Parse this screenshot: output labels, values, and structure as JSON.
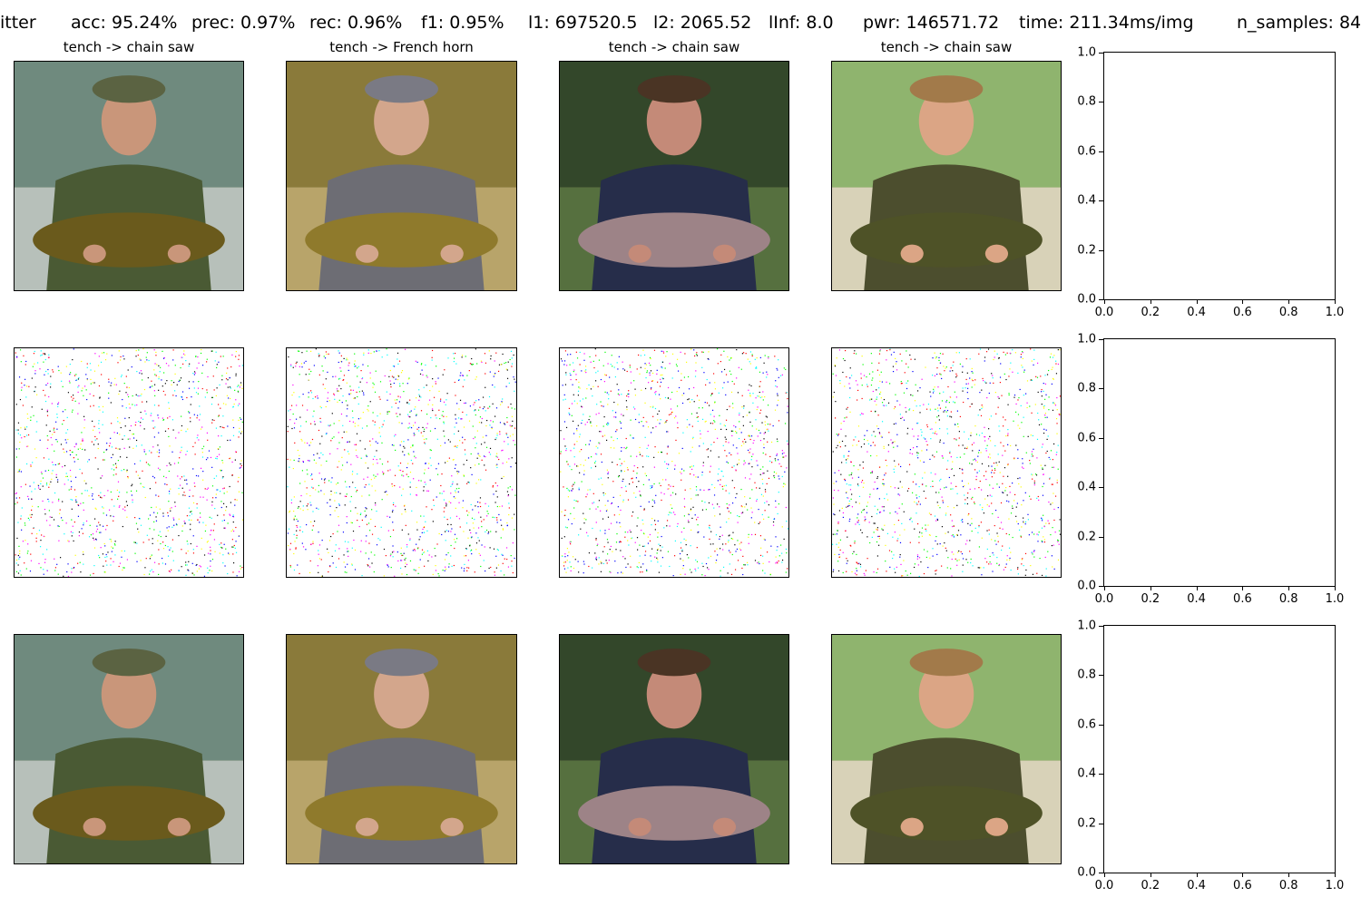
{
  "header": {
    "stats": [
      {
        "key": "method",
        "text": "itter"
      },
      {
        "key": "acc",
        "text": "acc: 95.24%"
      },
      {
        "key": "prec",
        "text": "prec: 0.97%"
      },
      {
        "key": "rec",
        "text": "rec: 0.96%"
      },
      {
        "key": "f1",
        "text": "f1: 0.95%"
      },
      {
        "key": "l1",
        "text": "l1: 697520.5"
      },
      {
        "key": "l2",
        "text": "l2: 2065.52"
      },
      {
        "key": "linf",
        "text": "lInf: 8.0"
      },
      {
        "key": "pwr",
        "text": "pwr: 146571.72"
      },
      {
        "key": "time",
        "text": "time: 211.34ms/img"
      },
      {
        "key": "n_samples",
        "text": "n_samples: 84"
      }
    ]
  },
  "columns": [
    {
      "caption": "tench -> chain saw",
      "image": "man-with-hat-holding-tench",
      "accent": "#4f5a33"
    },
    {
      "caption": "tench -> French horn",
      "image": "boy-in-hood-holding-tench",
      "accent": "#8f7a2c"
    },
    {
      "caption": "tench -> chain saw",
      "image": "man-in-navy-hoodie-holding-bream",
      "accent": "#2c3a22"
    },
    {
      "caption": "tench -> chain saw",
      "image": "smiling-man-holding-tench",
      "accent": "#7aa458"
    }
  ],
  "rows": [
    {
      "kind": "original"
    },
    {
      "kind": "perturbation"
    },
    {
      "kind": "adversarial"
    }
  ],
  "empty_axes": {
    "ticks": [
      "0.0",
      "0.2",
      "0.4",
      "0.6",
      "0.8",
      "1.0"
    ]
  },
  "noise_colors": [
    "#ff00ff",
    "#00ffff",
    "#ffff00",
    "#0000ff",
    "#000000",
    "#ff0000",
    "#00ff00"
  ]
}
